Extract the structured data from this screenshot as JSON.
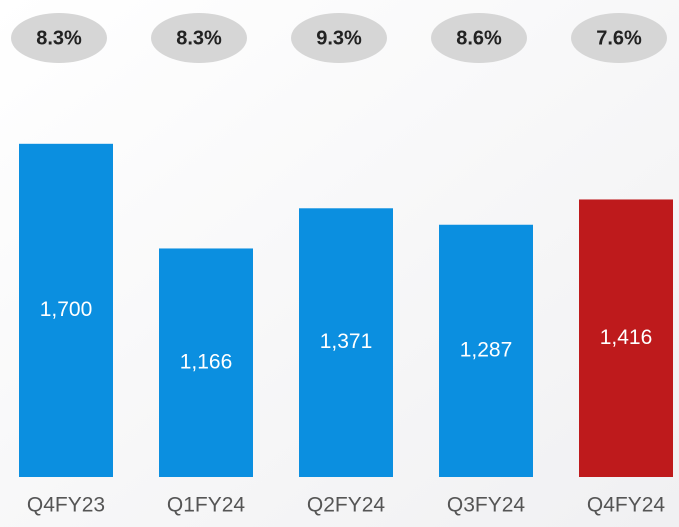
{
  "chart_data": {
    "type": "bar",
    "categories": [
      "Q4FY23",
      "Q1FY24",
      "Q2FY24",
      "Q3FY24",
      "Q4FY24"
    ],
    "values": [
      1700,
      1166,
      1371,
      1287,
      1416
    ],
    "value_labels": [
      "1,700",
      "1,166",
      "1,371",
      "1,287",
      "1,416"
    ],
    "colors": [
      "#0b8fe0",
      "#0b8fe0",
      "#0b8fe0",
      "#0b8fe0",
      "#be1a1c"
    ],
    "margins": {
      "values": [
        8.3,
        8.3,
        9.3,
        8.6,
        7.6
      ],
      "value_labels": [
        "8.3%",
        "8.3%",
        "9.3%",
        "8.6%",
        "7.6%"
      ]
    },
    "ylim": [
      0,
      2000
    ]
  }
}
